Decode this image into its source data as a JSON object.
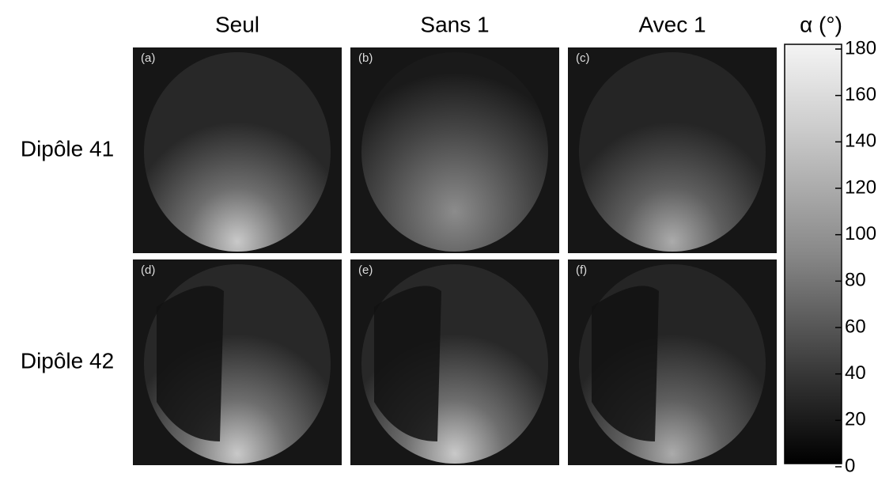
{
  "columns": [
    "Seul",
    "Sans 1",
    "Avec 1"
  ],
  "rows": [
    "Dipôle 41",
    "Dipôle 42"
  ],
  "panels": [
    "(a)",
    "(b)",
    "(c)",
    "(d)",
    "(e)",
    "(f)"
  ],
  "colorbar": {
    "label": "α (°)",
    "lim": [
      0,
      180
    ],
    "ticks": [
      0,
      20,
      40,
      60,
      80,
      100,
      120,
      140,
      160,
      180
    ]
  }
}
